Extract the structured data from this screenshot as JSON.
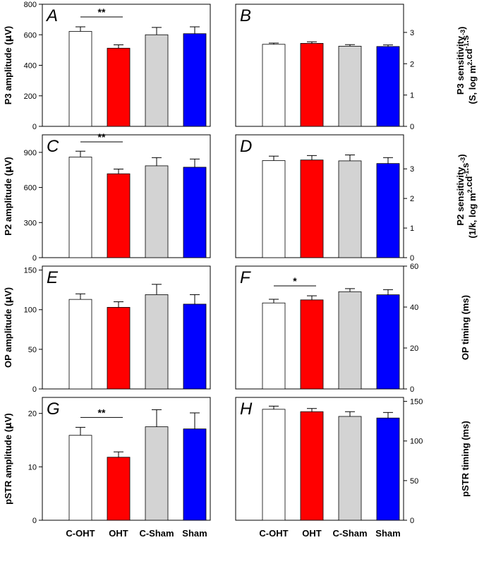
{
  "colors": {
    "c_oht": "#ffffff",
    "oht": "#ff0000",
    "c_sham": "#d3d3d3",
    "sham": "#0000ff",
    "axis": "#000000"
  },
  "chart_data": [
    {
      "type": "bar",
      "panel": "A",
      "categories": [
        "C-OHT",
        "OHT",
        "C-Sham",
        "Sham"
      ],
      "values": [
        622,
        512,
        600,
        607
      ],
      "errors": [
        30,
        22,
        48,
        45
      ],
      "ylabel_parts": [
        "P3 amplitude (",
        "μ",
        "V)"
      ],
      "axis_side": "left",
      "ylim": [
        0,
        800
      ],
      "yticks": [
        0,
        200,
        400,
        600,
        800
      ],
      "significance": [
        {
          "from": 0,
          "to": 1,
          "label": "**"
        }
      ]
    },
    {
      "type": "bar",
      "panel": "B",
      "categories": [
        "C-OHT",
        "OHT",
        "C-Sham",
        "Sham"
      ],
      "values": [
        2.62,
        2.65,
        2.56,
        2.55
      ],
      "errors": [
        0.04,
        0.05,
        0.05,
        0.05
      ],
      "ylabel_line1": "P3 sensitivity",
      "ylabel_line2": "(S, log m2.cd-1.s-3)",
      "axis_side": "right",
      "ylim": [
        0,
        3.9
      ],
      "yticks": [
        0,
        1,
        2,
        3
      ],
      "significance": []
    },
    {
      "type": "bar",
      "panel": "C",
      "categories": [
        "C-OHT",
        "OHT",
        "C-Sham",
        "Sham"
      ],
      "values": [
        860,
        717,
        785,
        773
      ],
      "errors": [
        50,
        40,
        70,
        70
      ],
      "ylabel_parts": [
        "P2 amplitude (",
        "μ",
        "V)"
      ],
      "axis_side": "left",
      "ylim": [
        0,
        1050
      ],
      "yticks": [
        0,
        300,
        600,
        900
      ],
      "significance": [
        {
          "from": 0,
          "to": 1,
          "label": "**"
        }
      ]
    },
    {
      "type": "bar",
      "panel": "D",
      "categories": [
        "C-OHT",
        "OHT",
        "C-Sham",
        "Sham"
      ],
      "values": [
        3.28,
        3.3,
        3.27,
        3.18
      ],
      "errors": [
        0.15,
        0.15,
        0.2,
        0.2
      ],
      "ylabel_line1": "P2 sensitivity",
      "ylabel_line2": "(1/k, log m2.cd-1.s-3)",
      "axis_side": "right",
      "ylim": [
        0,
        4.15
      ],
      "yticks": [
        0,
        1,
        2,
        3
      ],
      "significance": []
    },
    {
      "type": "bar",
      "panel": "E",
      "categories": [
        "C-OHT",
        "OHT",
        "C-Sham",
        "Sham"
      ],
      "values": [
        113,
        103,
        119,
        107
      ],
      "errors": [
        7,
        7,
        13,
        12
      ],
      "ylabel_parts": [
        "OP amplitude (",
        "μ",
        "V)"
      ],
      "axis_side": "left",
      "ylim": [
        0,
        155
      ],
      "yticks": [
        0,
        50,
        100,
        150
      ],
      "significance": []
    },
    {
      "type": "bar",
      "panel": "F",
      "categories": [
        "C-OHT",
        "OHT",
        "C-Sham",
        "Sham"
      ],
      "values": [
        42,
        43.5,
        47.5,
        46
      ],
      "errors": [
        1.8,
        2,
        1.5,
        2.5
      ],
      "ylabel": "OP timing (ms)",
      "axis_side": "right",
      "ylim": [
        0,
        60
      ],
      "yticks": [
        0,
        20,
        40,
        60
      ],
      "significance": [
        {
          "from": 0,
          "to": 1,
          "label": "*"
        }
      ]
    },
    {
      "type": "bar",
      "panel": "G",
      "categories": [
        "C-OHT",
        "OHT",
        "C-Sham",
        "Sham"
      ],
      "values": [
        15.9,
        11.8,
        17.5,
        17.1
      ],
      "errors": [
        1.5,
        1,
        3.2,
        3
      ],
      "ylabel_parts": [
        "pSTR amplitude (",
        "μ",
        "V)"
      ],
      "axis_side": "left",
      "ylim": [
        0,
        23
      ],
      "yticks": [
        0,
        10,
        20
      ],
      "significance": [
        {
          "from": 0,
          "to": 1,
          "label": "**"
        }
      ]
    },
    {
      "type": "bar",
      "panel": "H",
      "categories": [
        "C-OHT",
        "OHT",
        "C-Sham",
        "Sham"
      ],
      "values": [
        140,
        137,
        131,
        129
      ],
      "errors": [
        4,
        4,
        6,
        7
      ],
      "ylabel": "pSTR timing (ms)",
      "axis_side": "right",
      "ylim": [
        0,
        155
      ],
      "yticks": [
        0,
        50,
        100,
        150
      ],
      "significance": []
    }
  ]
}
